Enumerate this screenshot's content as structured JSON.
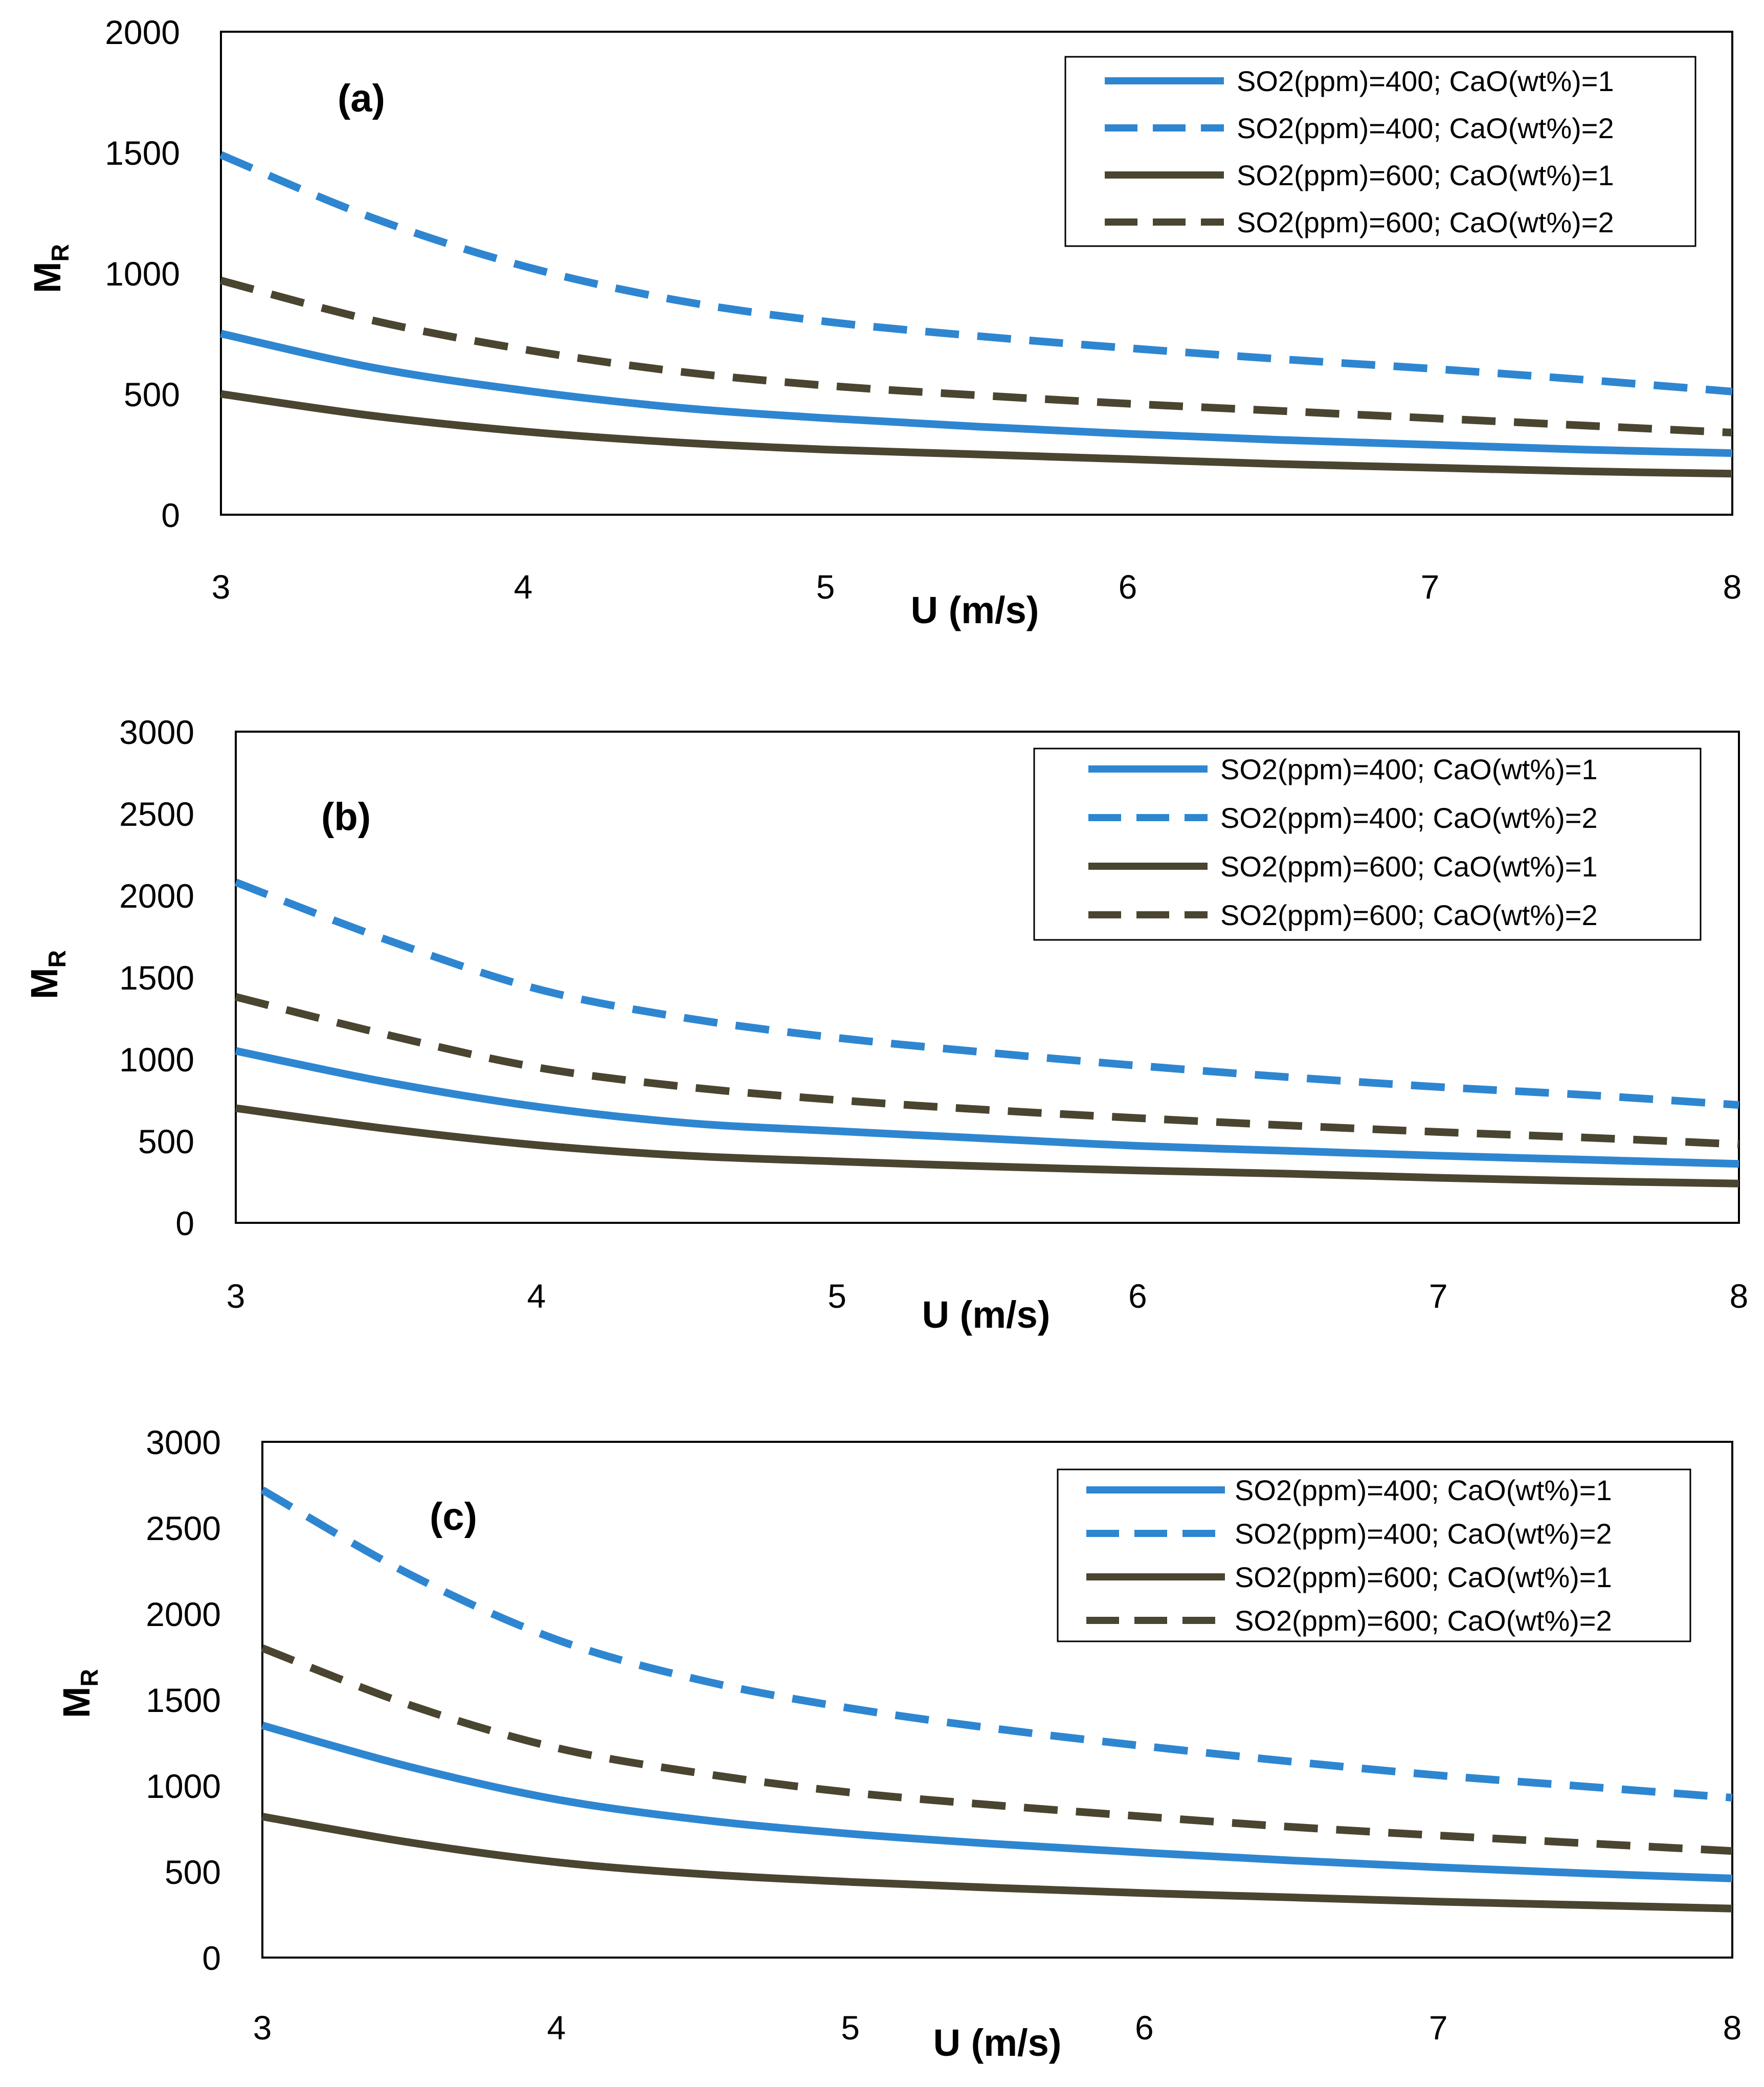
{
  "chart_data": [
    {
      "type": "line",
      "panel_label": "(a)",
      "xlabel": "U (m/s)",
      "ylabel": "M",
      "ylabel_sub": "R",
      "xlim": [
        3,
        8
      ],
      "ylim": [
        0,
        2000
      ],
      "xticks": [
        "3",
        "4",
        "5",
        "6",
        "7",
        "8"
      ],
      "yticks": [
        "0",
        "500",
        "1000",
        "1500",
        "2000"
      ],
      "x": [
        3,
        3.5,
        4,
        4.5,
        5,
        5.5,
        6,
        6.5,
        7,
        7.5,
        8
      ],
      "legend_position": "top-right",
      "series": [
        {
          "name": "SO2(ppm)=400; CaO(wt%)=1",
          "color": "#2E86D1",
          "style": "solid",
          "values": [
            750,
            610,
            515,
            445,
            400,
            365,
            335,
            310,
            290,
            270,
            255
          ]
        },
        {
          "name": "SO2(ppm)=400; CaO(wt%)=2",
          "color": "#2E86D1",
          "style": "dashed",
          "values": [
            1490,
            1230,
            1030,
            890,
            800,
            740,
            690,
            645,
            605,
            560,
            510
          ]
        },
        {
          "name": "SO2(ppm)=600; CaO(wt%)=1",
          "color": "#4A4530",
          "style": "solid",
          "values": [
            500,
            410,
            345,
            300,
            270,
            250,
            230,
            210,
            195,
            180,
            170
          ]
        },
        {
          "name": "SO2(ppm)=600; CaO(wt%)=2",
          "color": "#4A4530",
          "style": "dashed",
          "values": [
            970,
            805,
            685,
            595,
            535,
            495,
            460,
            430,
            400,
            370,
            340
          ]
        }
      ]
    },
    {
      "type": "line",
      "panel_label": "(b)",
      "xlabel": "U (m/s)",
      "ylabel": "M",
      "ylabel_sub": "R",
      "xlim": [
        3,
        8
      ],
      "ylim": [
        0,
        3000
      ],
      "xticks": [
        "3",
        "4",
        "5",
        "6",
        "7",
        "8"
      ],
      "yticks": [
        "0",
        "500",
        "1000",
        "1500",
        "2000",
        "2500",
        "3000"
      ],
      "x": [
        3,
        3.5,
        4,
        4.5,
        5,
        5.5,
        6,
        6.5,
        7,
        7.5,
        8
      ],
      "legend_position": "top-right",
      "series": [
        {
          "name": "SO2(ppm)=400; CaO(wt%)=1",
          "color": "#2E86D1",
          "style": "solid",
          "values": [
            1050,
            860,
            710,
            610,
            560,
            515,
            470,
            440,
            410,
            385,
            360
          ]
        },
        {
          "name": "SO2(ppm)=400; CaO(wt%)=2",
          "color": "#2E86D1",
          "style": "dashed",
          "values": [
            2080,
            1730,
            1430,
            1250,
            1130,
            1040,
            960,
            890,
            830,
            780,
            720
          ]
        },
        {
          "name": "SO2(ppm)=600; CaO(wt%)=1",
          "color": "#4A4530",
          "style": "solid",
          "values": [
            700,
            575,
            475,
            410,
            375,
            345,
            320,
            300,
            275,
            255,
            240
          ]
        },
        {
          "name": "SO2(ppm)=600; CaO(wt%)=2",
          "color": "#4A4530",
          "style": "dashed",
          "values": [
            1380,
            1150,
            950,
            830,
            750,
            690,
            640,
            595,
            555,
            520,
            480
          ]
        }
      ]
    },
    {
      "type": "line",
      "panel_label": "(c)",
      "xlabel": "U (m/s)",
      "ylabel": "M",
      "ylabel_sub": "R",
      "xlim": [
        3,
        8
      ],
      "ylim": [
        0,
        3000
      ],
      "xticks": [
        "3",
        "4",
        "5",
        "6",
        "7",
        "8"
      ],
      "yticks": [
        "0",
        "500",
        "1000",
        "1500",
        "2000",
        "2500",
        "3000"
      ],
      "x": [
        3,
        3.5,
        4,
        4.5,
        5,
        5.5,
        6,
        6.5,
        7,
        7.5,
        8
      ],
      "legend_position": "top-right",
      "series": [
        {
          "name": "SO2(ppm)=400; CaO(wt%)=1",
          "color": "#2E86D1",
          "style": "solid",
          "values": [
            1350,
            1110,
            920,
            800,
            720,
            660,
            610,
            565,
            525,
            490,
            460
          ]
        },
        {
          "name": "SO2(ppm)=400; CaO(wt%)=2",
          "color": "#2E86D1",
          "style": "dashed",
          "values": [
            2720,
            2230,
            1850,
            1610,
            1450,
            1330,
            1230,
            1140,
            1060,
            995,
            930
          ]
        },
        {
          "name": "SO2(ppm)=600; CaO(wt%)=1",
          "color": "#4A4530",
          "style": "solid",
          "values": [
            820,
            670,
            555,
            485,
            440,
            405,
            375,
            350,
            325,
            305,
            285
          ]
        },
        {
          "name": "SO2(ppm)=600; CaO(wt%)=2",
          "color": "#4A4530",
          "style": "dashed",
          "values": [
            1800,
            1470,
            1220,
            1070,
            960,
            885,
            820,
            760,
            710,
            665,
            620
          ]
        }
      ]
    }
  ]
}
